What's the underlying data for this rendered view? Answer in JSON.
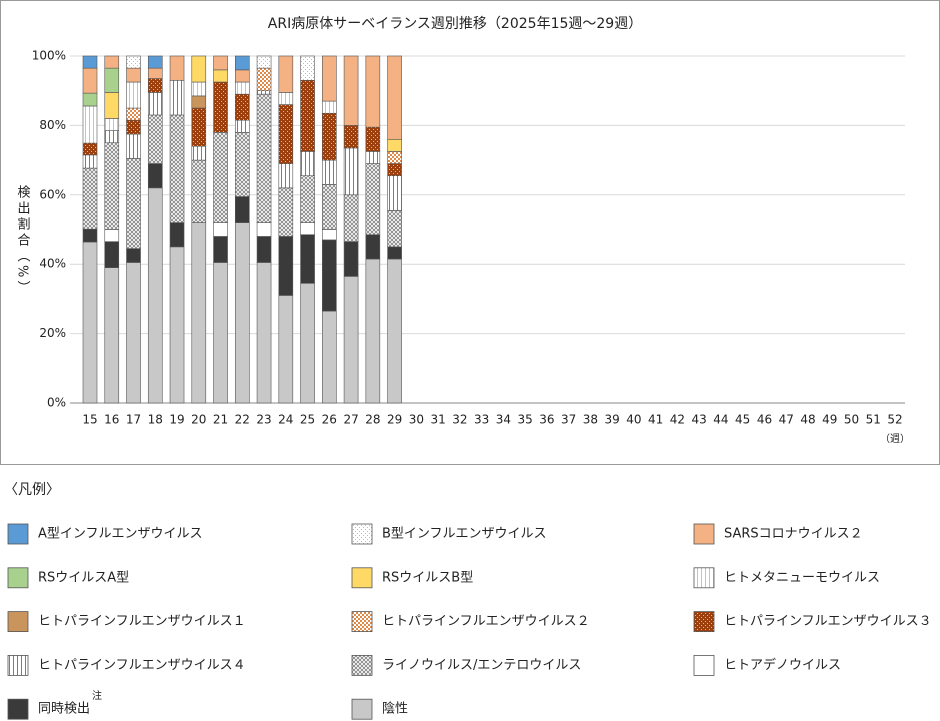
{
  "chart_data": {
    "type": "stacked_bar",
    "title": "ARI病原体サーベイランス週別推移（2025年15週～29週）",
    "y_label": "検出割合（%）",
    "x_unit": "（週）",
    "legend_title": "〈凡例〉",
    "note_mark": "注",
    "categories": [
      "15",
      "16",
      "17",
      "18",
      "19",
      "20",
      "21",
      "22",
      "23",
      "24",
      "25",
      "26",
      "27",
      "28",
      "29",
      "30",
      "31",
      "32",
      "33",
      "34",
      "35",
      "36",
      "37",
      "38",
      "39",
      "40",
      "41",
      "42",
      "43",
      "44",
      "45",
      "46",
      "47",
      "48",
      "49",
      "50",
      "51",
      "52"
    ],
    "ylim": [
      0,
      100
    ],
    "yticks": [
      {
        "value": 0,
        "label": "0%"
      },
      {
        "value": 20,
        "label": "20%"
      },
      {
        "value": 40,
        "label": "40%"
      },
      {
        "value": 60,
        "label": "60%"
      },
      {
        "value": 80,
        "label": "80%"
      },
      {
        "value": 100,
        "label": "100%"
      }
    ],
    "grid": true,
    "series": [
      {
        "name": "A型インフルエンザウイルス",
        "color": "#5b9bd5",
        "pattern": "solid",
        "values": [
          3.5,
          0,
          0,
          3.5,
          0,
          0,
          0,
          4,
          0,
          0,
          0,
          0,
          0,
          0,
          0,
          null,
          null,
          null,
          null,
          null,
          null,
          null,
          null,
          null,
          null,
          null,
          null,
          null,
          null,
          null,
          null,
          null,
          null,
          null,
          null,
          null,
          null,
          null
        ]
      },
      {
        "name": "B型インフルエンザウイルス",
        "color": "#9dc3e6",
        "pattern": "dots",
        "values": [
          0,
          0,
          3.5,
          0,
          0,
          0,
          0,
          0,
          3.5,
          0,
          7,
          0,
          0,
          0,
          0,
          null,
          null,
          null,
          null,
          null,
          null,
          null,
          null,
          null,
          null,
          null,
          null,
          null,
          null,
          null,
          null,
          null,
          null,
          null,
          null,
          null,
          null,
          null
        ]
      },
      {
        "name": "SARSコロナウイルス２",
        "color": "#f4b183",
        "pattern": "solid",
        "values": [
          7.2,
          3.5,
          4,
          3,
          7,
          0,
          4,
          3.5,
          0,
          10.5,
          0,
          13,
          20,
          20.5,
          24,
          null,
          null,
          null,
          null,
          null,
          null,
          null,
          null,
          null,
          null,
          null,
          null,
          null,
          null,
          null,
          null,
          null,
          null,
          null,
          null,
          null,
          null,
          null
        ]
      },
      {
        "name": "RSウイルスA型",
        "color": "#a9d18e",
        "pattern": "solid",
        "values": [
          3.7,
          7,
          0,
          0,
          0,
          0,
          0,
          0,
          0,
          0,
          0,
          0,
          0,
          0,
          0,
          null,
          null,
          null,
          null,
          null,
          null,
          null,
          null,
          null,
          null,
          null,
          null,
          null,
          null,
          null,
          null,
          null,
          null,
          null,
          null,
          null,
          null,
          null
        ]
      },
      {
        "name": "RSウイルスB型",
        "color": "#ffd966",
        "pattern": "solid",
        "values": [
          0,
          7.5,
          0,
          0,
          0,
          7.5,
          3.5,
          0,
          0,
          0,
          0,
          0,
          0,
          0,
          3.5,
          null,
          null,
          null,
          null,
          null,
          null,
          null,
          null,
          null,
          null,
          null,
          null,
          null,
          null,
          null,
          null,
          null,
          null,
          null,
          null,
          null,
          null,
          null
        ]
      },
      {
        "name": "ヒトメタニューモウイルス",
        "color": "#e6c84a",
        "pattern": "vstripes",
        "values": [
          10.7,
          3.5,
          7.5,
          0,
          0,
          4,
          0,
          3.5,
          0,
          3.5,
          0,
          3.5,
          0,
          0,
          0,
          null,
          null,
          null,
          null,
          null,
          null,
          null,
          null,
          null,
          null,
          null,
          null,
          null,
          null,
          null,
          null,
          null,
          null,
          null,
          null,
          null,
          null,
          null
        ]
      },
      {
        "name": "ヒトパラインフルエンザウイルス１",
        "color": "#c9955c",
        "pattern": "solid",
        "values": [
          0,
          0,
          0,
          0,
          0,
          3.5,
          0,
          0,
          0,
          0,
          0,
          0,
          0,
          0,
          0,
          null,
          null,
          null,
          null,
          null,
          null,
          null,
          null,
          null,
          null,
          null,
          null,
          null,
          null,
          null,
          null,
          null,
          null,
          null,
          null,
          null,
          null,
          null
        ]
      },
      {
        "name": "ヒトパラインフルエンザウイルス２",
        "color": "#e08a4a",
        "pattern": "checker",
        "values": [
          0,
          0,
          3.5,
          0,
          0,
          0,
          0,
          0,
          6.5,
          0,
          0,
          0,
          0,
          0,
          3.5,
          null,
          null,
          null,
          null,
          null,
          null,
          null,
          null,
          null,
          null,
          null,
          null,
          null,
          null,
          null,
          null,
          null,
          null,
          null,
          null,
          null,
          null,
          null
        ]
      },
      {
        "name": "ヒトパラインフルエンザウイルス３",
        "color": "#9c3f0c",
        "pattern": "browndots",
        "values": [
          3.4,
          0,
          4,
          4,
          0,
          11,
          14.5,
          7.5,
          0,
          17,
          20.5,
          13.5,
          6.5,
          7,
          3.5,
          null,
          null,
          null,
          null,
          null,
          null,
          null,
          null,
          null,
          null,
          null,
          null,
          null,
          null,
          null,
          null,
          null,
          null,
          null,
          null,
          null,
          null,
          null
        ]
      },
      {
        "name": "ヒトパラインフルエンザウイルス４",
        "color": "#a0705a",
        "pattern": "vstripes",
        "values": [
          3.8,
          3.5,
          7,
          6.5,
          10,
          4,
          0,
          3.5,
          1,
          7,
          7,
          7,
          13.5,
          3.5,
          10,
          null,
          null,
          null,
          null,
          null,
          null,
          null,
          null,
          null,
          null,
          null,
          null,
          null,
          null,
          null,
          null,
          null,
          null,
          null,
          null,
          null,
          null,
          null
        ]
      },
      {
        "name": "ライノウイルス/エンテロウイルス",
        "color": "#808080",
        "pattern": "crosshatch",
        "values": [
          17.6,
          25,
          26,
          14,
          31,
          18,
          26,
          18.5,
          37,
          14,
          13.5,
          13,
          13.5,
          20.5,
          10.5,
          null,
          null,
          null,
          null,
          null,
          null,
          null,
          null,
          null,
          null,
          null,
          null,
          null,
          null,
          null,
          null,
          null,
          null,
          null,
          null,
          null,
          null,
          null
        ]
      },
      {
        "name": "ヒトアデノウイルス",
        "color": "#ffffff",
        "pattern": "solid",
        "values": [
          0,
          3.5,
          0,
          0,
          0,
          0,
          4,
          0,
          4,
          0,
          3.5,
          3,
          0,
          0,
          0,
          null,
          null,
          null,
          null,
          null,
          null,
          null,
          null,
          null,
          null,
          null,
          null,
          null,
          null,
          null,
          null,
          null,
          null,
          null,
          null,
          null,
          null,
          null
        ]
      },
      {
        "name": "同時検出",
        "color": "#3a3a3a",
        "pattern": "solid",
        "values": [
          3.7,
          7.5,
          4,
          7,
          7,
          0,
          7.5,
          7.5,
          7.5,
          17,
          14,
          20.5,
          10,
          7,
          3.5,
          null,
          null,
          null,
          null,
          null,
          null,
          null,
          null,
          null,
          null,
          null,
          null,
          null,
          null,
          null,
          null,
          null,
          null,
          null,
          null,
          null,
          null,
          null
        ]
      },
      {
        "name": "陰性",
        "color": "#c8c8c8",
        "pattern": "solid",
        "values": [
          46.4,
          39,
          40.5,
          62,
          45,
          52,
          40.5,
          52,
          40.5,
          31,
          34.5,
          26.5,
          36.5,
          41.5,
          41.5,
          null,
          null,
          null,
          null,
          null,
          null,
          null,
          null,
          null,
          null,
          null,
          null,
          null,
          null,
          null,
          null,
          null,
          null,
          null,
          null,
          null,
          null,
          null
        ]
      }
    ]
  }
}
